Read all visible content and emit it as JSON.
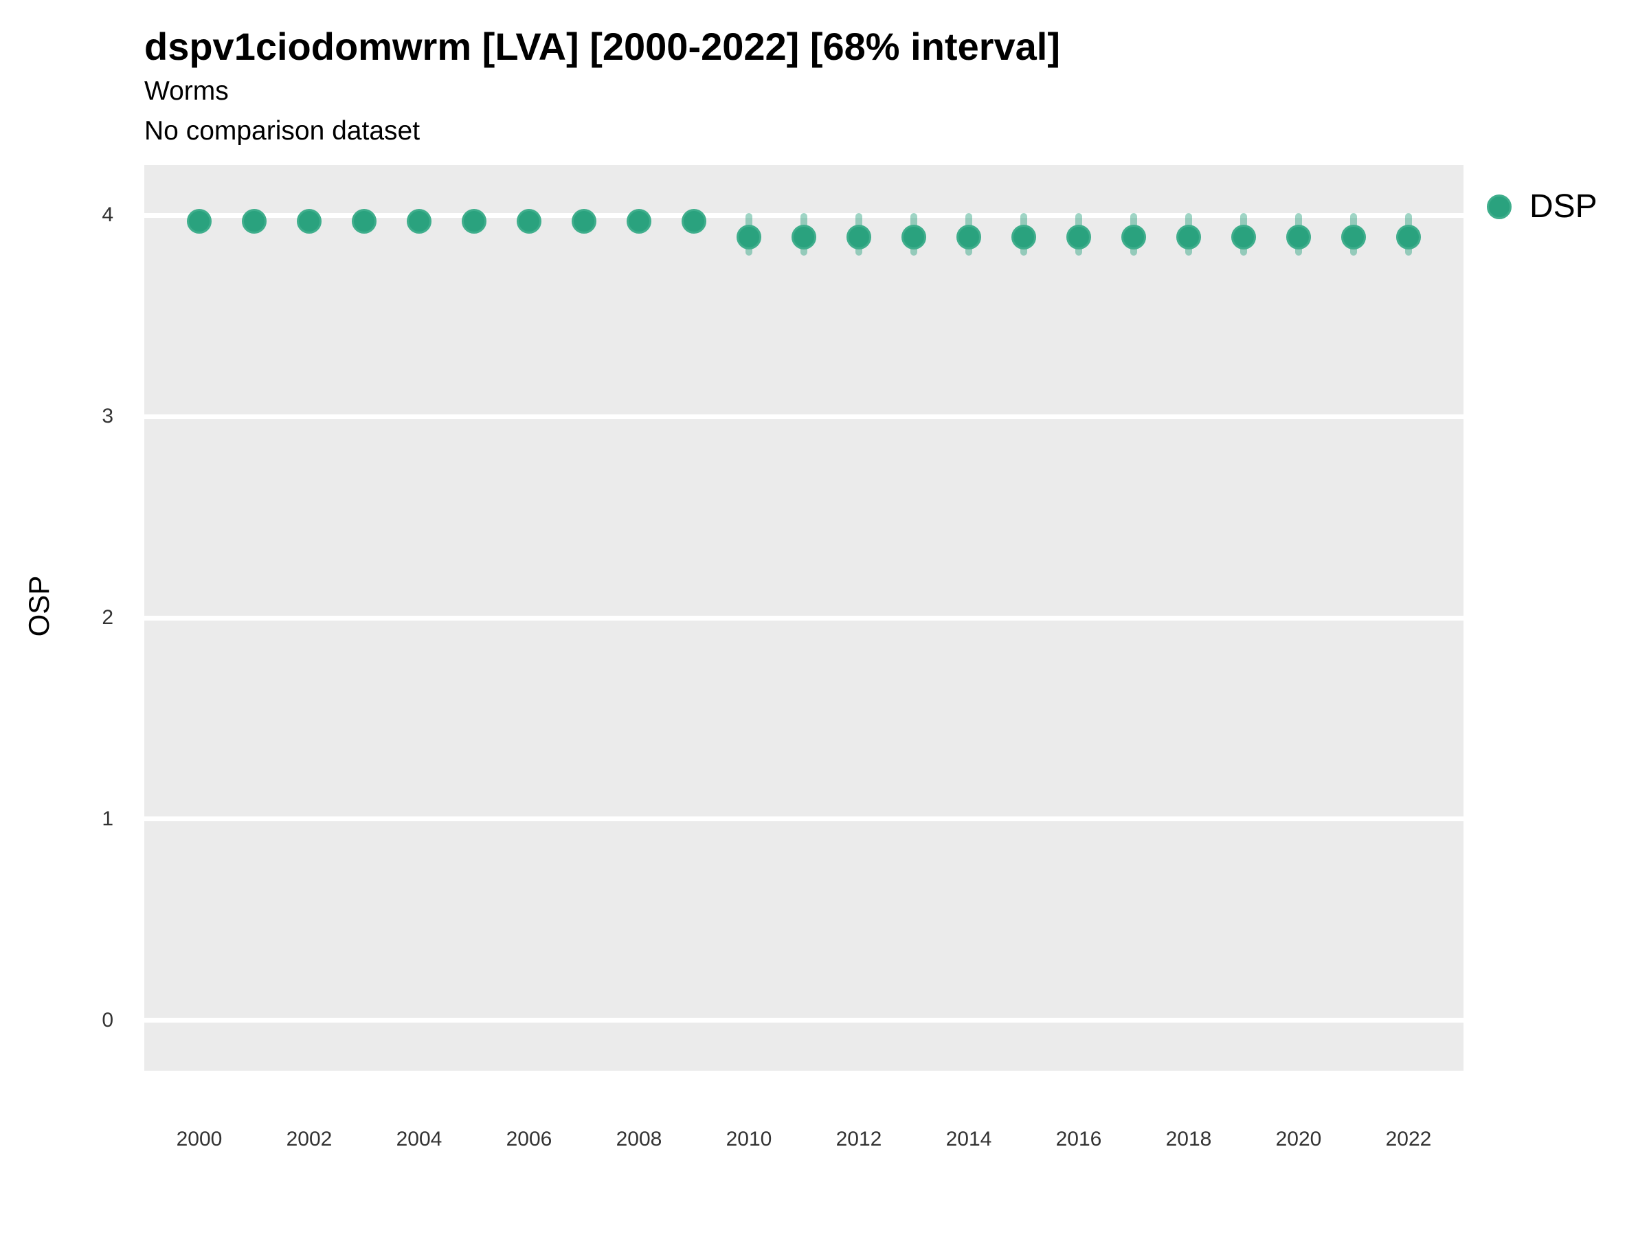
{
  "header": {
    "title": "dspv1ciodomwrm [LVA] [2000-2022] [68% interval]",
    "subtitle": "Worms",
    "comparison_note": "No comparison dataset"
  },
  "legend": {
    "items": [
      {
        "label": "DSP",
        "color": "#2aa27e"
      }
    ]
  },
  "colors": {
    "point_fill": "#2aa27e",
    "point_rim": "#3fae8c",
    "errorbar": "rgba(42,162,126,0.45)",
    "panel_bg": "#ebebeb",
    "gridline": "#ffffff",
    "tick_text": "#333333"
  },
  "chart_data": {
    "type": "scatter",
    "title": "dspv1ciodomwrm [LVA] [2000-2022] [68% interval]",
    "subtitle": "Worms",
    "note": "No comparison dataset",
    "xlabel": "",
    "ylabel": "OSP",
    "legend_position": "right-top",
    "grid": "major horizontal white lines on gray panel",
    "xlim": [
      1999,
      2023
    ],
    "ylim": [
      -0.25,
      4.25
    ],
    "xticks": [
      2000,
      2002,
      2004,
      2006,
      2008,
      2010,
      2012,
      2014,
      2016,
      2018,
      2020,
      2022
    ],
    "yticks": [
      0,
      1,
      2,
      3,
      4
    ],
    "x": [
      2000,
      2001,
      2002,
      2003,
      2004,
      2005,
      2006,
      2007,
      2008,
      2009,
      2010,
      2011,
      2012,
      2013,
      2014,
      2015,
      2016,
      2017,
      2018,
      2019,
      2020,
      2021,
      2022
    ],
    "series": [
      {
        "name": "DSP",
        "values": [
          3.97,
          3.97,
          3.97,
          3.97,
          3.97,
          3.97,
          3.97,
          3.97,
          3.97,
          3.97,
          3.89,
          3.89,
          3.89,
          3.89,
          3.89,
          3.89,
          3.89,
          3.89,
          3.89,
          3.89,
          3.89,
          3.89,
          3.89
        ],
        "interval_68_low": [
          3.91,
          3.91,
          3.91,
          3.91,
          3.91,
          3.91,
          3.91,
          3.91,
          3.91,
          3.91,
          3.8,
          3.8,
          3.8,
          3.8,
          3.8,
          3.8,
          3.8,
          3.8,
          3.8,
          3.8,
          3.8,
          3.8,
          3.8
        ],
        "interval_68_high": [
          4.03,
          4.03,
          4.03,
          4.03,
          4.03,
          4.03,
          4.03,
          4.03,
          4.03,
          4.03,
          4.01,
          4.01,
          4.01,
          4.01,
          4.01,
          4.01,
          4.01,
          4.01,
          4.01,
          4.01,
          4.01,
          4.01,
          4.01
        ]
      }
    ]
  }
}
